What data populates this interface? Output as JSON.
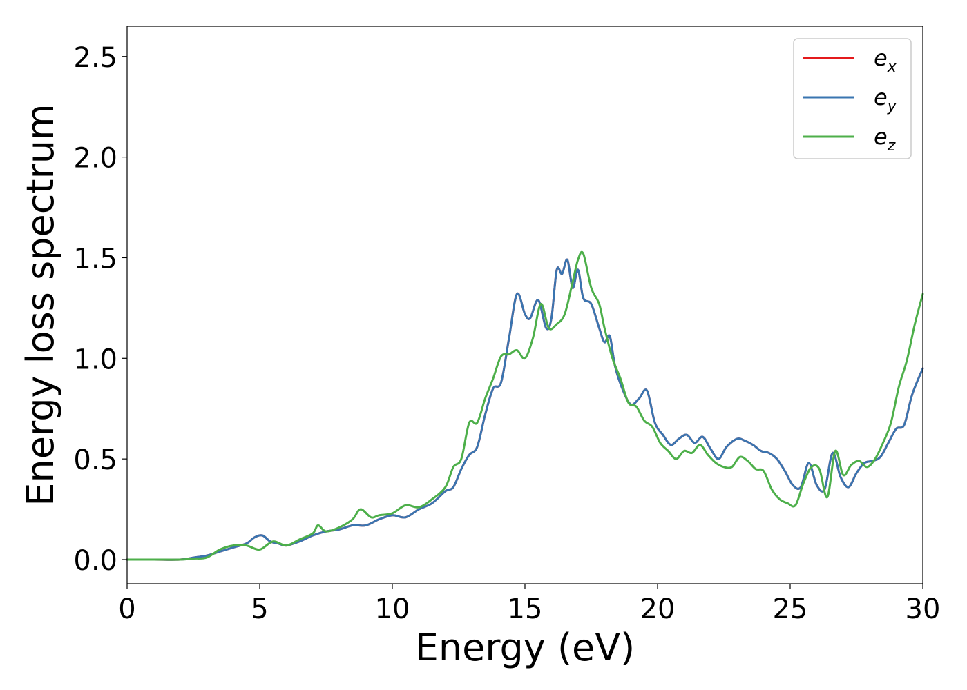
{
  "chart_data": {
    "type": "line",
    "xlabel": "Energy (eV)",
    "ylabel": "Energy loss spectrum",
    "xlim": [
      0,
      30
    ],
    "ylim": [
      -0.12,
      2.65
    ],
    "xticks": [
      0,
      5,
      10,
      15,
      20,
      25,
      30
    ],
    "xtick_labels": [
      "0",
      "5",
      "10",
      "15",
      "20",
      "25",
      "30"
    ],
    "yticks": [
      0.0,
      0.5,
      1.0,
      1.5,
      2.0,
      2.5
    ],
    "ytick_labels": [
      "0.0",
      "0.5",
      "1.0",
      "1.5",
      "2.0",
      "2.5"
    ],
    "grid": false,
    "legend_position": "top-right",
    "series": [
      {
        "name": "e",
        "subscript": "x",
        "color": "#e41a1c",
        "x": [
          0,
          1,
          2,
          2.5,
          3,
          3.5,
          4,
          4.5,
          4.8,
          5.1,
          5.4,
          5.7,
          6,
          6.5,
          7,
          7.5,
          8,
          8.5,
          9,
          9.5,
          10,
          10.5,
          11,
          11.5,
          12,
          12.3,
          12.6,
          12.9,
          13.2,
          13.5,
          13.8,
          14.1,
          14.4,
          14.7,
          15,
          15.2,
          15.5,
          15.8,
          16,
          16.2,
          16.4,
          16.6,
          16.8,
          17,
          17.2,
          17.5,
          17.8,
          18,
          18.2,
          18.4,
          18.7,
          19,
          19.3,
          19.6,
          19.9,
          20.2,
          20.5,
          20.8,
          21.1,
          21.4,
          21.7,
          22,
          22.3,
          22.6,
          23,
          23.3,
          23.6,
          23.9,
          24.2,
          24.5,
          24.8,
          25.1,
          25.4,
          25.7,
          26,
          26.3,
          26.6,
          26.9,
          27.2,
          27.5,
          27.8,
          28.1,
          28.4,
          28.7,
          29,
          29.3,
          29.6,
          30
        ],
        "y": [
          0,
          0,
          0,
          0.01,
          0.02,
          0.04,
          0.06,
          0.08,
          0.11,
          0.12,
          0.09,
          0.08,
          0.07,
          0.09,
          0.12,
          0.14,
          0.15,
          0.17,
          0.17,
          0.2,
          0.22,
          0.21,
          0.25,
          0.28,
          0.34,
          0.36,
          0.45,
          0.52,
          0.56,
          0.72,
          0.85,
          0.88,
          1.1,
          1.32,
          1.22,
          1.2,
          1.29,
          1.15,
          1.2,
          1.44,
          1.42,
          1.49,
          1.35,
          1.44,
          1.3,
          1.27,
          1.15,
          1.08,
          1.11,
          0.96,
          0.84,
          0.77,
          0.8,
          0.84,
          0.68,
          0.62,
          0.57,
          0.6,
          0.62,
          0.58,
          0.61,
          0.55,
          0.5,
          0.56,
          0.6,
          0.59,
          0.57,
          0.54,
          0.53,
          0.5,
          0.44,
          0.37,
          0.36,
          0.48,
          0.37,
          0.35,
          0.53,
          0.41,
          0.36,
          0.43,
          0.48,
          0.49,
          0.51,
          0.58,
          0.65,
          0.67,
          0.82,
          0.95
        ]
      },
      {
        "name": "e",
        "subscript": "y",
        "color": "#3a75b0",
        "x": [
          0,
          1,
          2,
          2.5,
          3,
          3.5,
          4,
          4.5,
          4.8,
          5.1,
          5.4,
          5.7,
          6,
          6.5,
          7,
          7.5,
          8,
          8.5,
          9,
          9.5,
          10,
          10.5,
          11,
          11.5,
          12,
          12.3,
          12.6,
          12.9,
          13.2,
          13.5,
          13.8,
          14.1,
          14.4,
          14.7,
          15,
          15.2,
          15.5,
          15.8,
          16,
          16.2,
          16.4,
          16.6,
          16.8,
          17,
          17.2,
          17.5,
          17.8,
          18,
          18.2,
          18.4,
          18.7,
          19,
          19.3,
          19.6,
          19.9,
          20.2,
          20.5,
          20.8,
          21.1,
          21.4,
          21.7,
          22,
          22.3,
          22.6,
          23,
          23.3,
          23.6,
          23.9,
          24.2,
          24.5,
          24.8,
          25.1,
          25.4,
          25.7,
          26,
          26.3,
          26.6,
          26.9,
          27.2,
          27.5,
          27.8,
          28.1,
          28.4,
          28.7,
          29,
          29.3,
          29.6,
          30
        ],
        "y": [
          0,
          0,
          0,
          0.01,
          0.02,
          0.04,
          0.06,
          0.08,
          0.11,
          0.12,
          0.09,
          0.08,
          0.07,
          0.09,
          0.12,
          0.14,
          0.15,
          0.17,
          0.17,
          0.2,
          0.22,
          0.21,
          0.25,
          0.28,
          0.34,
          0.36,
          0.45,
          0.52,
          0.56,
          0.72,
          0.85,
          0.88,
          1.1,
          1.32,
          1.22,
          1.2,
          1.29,
          1.15,
          1.2,
          1.44,
          1.42,
          1.49,
          1.35,
          1.44,
          1.3,
          1.27,
          1.15,
          1.08,
          1.11,
          0.96,
          0.84,
          0.77,
          0.8,
          0.84,
          0.68,
          0.62,
          0.57,
          0.6,
          0.62,
          0.58,
          0.61,
          0.55,
          0.5,
          0.56,
          0.6,
          0.59,
          0.57,
          0.54,
          0.53,
          0.5,
          0.44,
          0.37,
          0.36,
          0.48,
          0.37,
          0.35,
          0.53,
          0.41,
          0.36,
          0.43,
          0.48,
          0.49,
          0.51,
          0.58,
          0.65,
          0.67,
          0.82,
          0.95
        ]
      },
      {
        "name": "e",
        "subscript": "z",
        "color": "#4daf4a",
        "x": [
          0,
          1,
          2,
          2.5,
          3,
          3.5,
          4,
          4.5,
          5,
          5.5,
          6,
          6.5,
          7,
          7.2,
          7.5,
          8,
          8.5,
          8.8,
          9.2,
          9.5,
          10,
          10.5,
          11,
          11.5,
          12,
          12.3,
          12.6,
          12.9,
          13.2,
          13.5,
          13.8,
          14.1,
          14.4,
          14.7,
          15,
          15.3,
          15.6,
          15.9,
          16.2,
          16.5,
          16.8,
          17,
          17.2,
          17.5,
          17.8,
          18,
          18.3,
          18.6,
          18.9,
          19.2,
          19.5,
          19.8,
          20.1,
          20.4,
          20.7,
          21,
          21.3,
          21.6,
          21.9,
          22.2,
          22.5,
          22.8,
          23.1,
          23.4,
          23.7,
          24,
          24.3,
          24.6,
          24.9,
          25.2,
          25.5,
          25.8,
          26.1,
          26.4,
          26.7,
          27,
          27.3,
          27.6,
          27.9,
          28.2,
          28.5,
          28.8,
          29.1,
          29.4,
          29.7,
          30
        ],
        "y": [
          0,
          0,
          0,
          0.005,
          0.01,
          0.05,
          0.07,
          0.07,
          0.05,
          0.09,
          0.07,
          0.1,
          0.13,
          0.17,
          0.14,
          0.16,
          0.2,
          0.25,
          0.21,
          0.22,
          0.23,
          0.27,
          0.26,
          0.3,
          0.36,
          0.46,
          0.5,
          0.68,
          0.68,
          0.8,
          0.9,
          1.01,
          1.02,
          1.04,
          1.0,
          1.1,
          1.27,
          1.15,
          1.17,
          1.22,
          1.38,
          1.49,
          1.52,
          1.35,
          1.27,
          1.15,
          1.0,
          0.9,
          0.78,
          0.76,
          0.69,
          0.66,
          0.58,
          0.54,
          0.5,
          0.54,
          0.53,
          0.57,
          0.52,
          0.48,
          0.46,
          0.46,
          0.51,
          0.49,
          0.45,
          0.44,
          0.35,
          0.3,
          0.28,
          0.27,
          0.38,
          0.46,
          0.45,
          0.31,
          0.54,
          0.42,
          0.47,
          0.49,
          0.46,
          0.5,
          0.58,
          0.68,
          0.86,
          0.99,
          1.17,
          1.32
        ]
      }
    ]
  }
}
